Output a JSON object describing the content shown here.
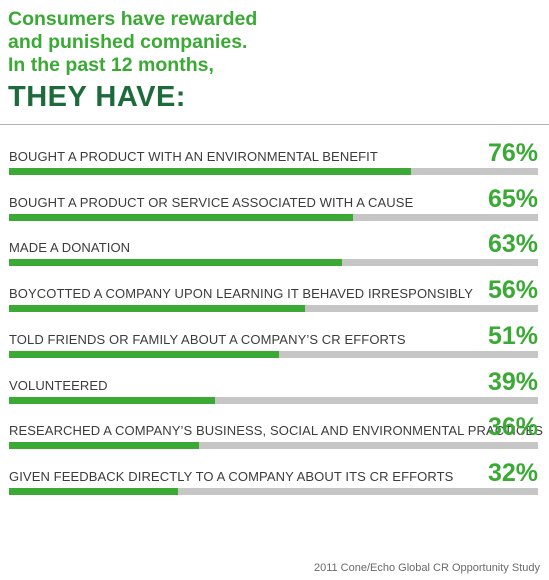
{
  "headline": {
    "line1": "Consumers have rewarded",
    "line2": "and punished companies.",
    "line3": "In the past 12 months,",
    "emphasis": "THEY HAVE:"
  },
  "colors": {
    "accent_green": "#3aaa35",
    "dark_green": "#1d6b3a",
    "track_gray": "#c6c6c6"
  },
  "chart_data": {
    "type": "bar",
    "orientation": "horizontal",
    "categories": [
      "BOUGHT A PRODUCT WITH AN ENVIRONMENTAL BENEFIT",
      "BOUGHT A PRODUCT OR SERVICE ASSOCIATED WITH A CAUSE",
      "MADE A DONATION",
      "BOYCOTTED A COMPANY UPON LEARNING IT BEHAVED IRRESPONSIBLY",
      "TOLD FRIENDS OR FAMILY ABOUT A COMPANY’S CR EFFORTS",
      "VOLUNTEERED",
      "RESEARCHED A COMPANY’S BUSINESS, SOCIAL AND ENVIRONMENTAL PRACTICES",
      "GIVEN FEEDBACK DIRECTLY TO A COMPANY ABOUT ITS CR EFFORTS"
    ],
    "values": [
      76,
      65,
      63,
      56,
      51,
      39,
      36,
      32
    ],
    "value_labels": [
      "76%",
      "65%",
      "63%",
      "56%",
      "51%",
      "39%",
      "36%",
      "32%"
    ],
    "xlim": [
      0,
      100
    ],
    "grid": false
  },
  "source": "2011 Cone/Echo Global CR Opportunity Study"
}
